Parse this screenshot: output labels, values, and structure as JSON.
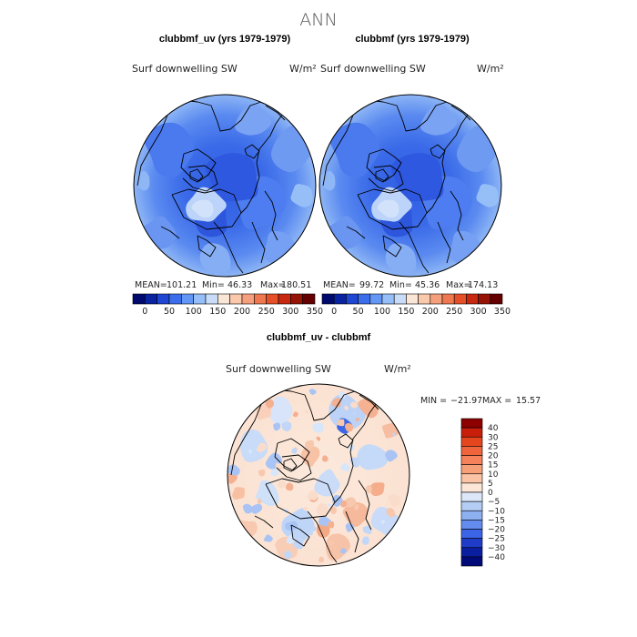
{
  "figure_title": "ANN",
  "chart_data": [
    {
      "type": "heatmap",
      "title": "clubbmf_uv (yrs 1979-1979)",
      "variable": "Surf downwelling SW",
      "units": "W/m²",
      "projection": "north polar stereographic",
      "stats": {
        "mean_label": "MEAN=",
        "mean": "101.21",
        "min_label": "Min=",
        "min": "46.33",
        "max_label": "Max=",
        "max": "180.51"
      },
      "colorbar": {
        "orientation": "horizontal",
        "ticks": [
          "0",
          "50",
          "100",
          "150",
          "200",
          "250",
          "300",
          "350"
        ],
        "colors": [
          "#000a6e",
          "#0a23a0",
          "#1e46d2",
          "#3c6eeb",
          "#6496f5",
          "#96bef8",
          "#c8dcfa",
          "#fae6d7",
          "#fac8aa",
          "#f5a07d",
          "#f07850",
          "#e65028",
          "#c8280f",
          "#961405",
          "#640000"
        ]
      }
    },
    {
      "type": "heatmap",
      "title": "clubbmf (yrs 1979-1979)",
      "variable": "Surf downwelling SW",
      "units": "W/m²",
      "projection": "north polar stereographic",
      "stats": {
        "mean_label": "MEAN=",
        "mean": "99.72",
        "min_label": "Min=",
        "min": "45.36",
        "max_label": "Max=",
        "max": "174.13"
      },
      "colorbar": {
        "orientation": "horizontal",
        "ticks": [
          "0",
          "50",
          "100",
          "150",
          "200",
          "250",
          "300",
          "350"
        ],
        "colors": [
          "#000a6e",
          "#0a23a0",
          "#1e46d2",
          "#3c6eeb",
          "#6496f5",
          "#96bef8",
          "#c8dcfa",
          "#fae6d7",
          "#fac8aa",
          "#f5a07d",
          "#f07850",
          "#e65028",
          "#c8280f",
          "#961405",
          "#640000"
        ]
      }
    },
    {
      "type": "heatmap",
      "title": "clubbmf_uv - clubbmf",
      "variable": "Surf downwelling SW",
      "units": "W/m²",
      "projection": "north polar stereographic",
      "stats": {
        "min_label": "MIN =",
        "min": "−21.97",
        "max_label": "MAX =",
        "max": "15.57"
      },
      "colorbar": {
        "orientation": "vertical",
        "ticks": [
          "40",
          "30",
          "25",
          "20",
          "15",
          "10",
          "5",
          "0",
          "−5",
          "−10",
          "−15",
          "−20",
          "−25",
          "−30",
          "−40"
        ],
        "colors": [
          "#8c0000",
          "#c81e0a",
          "#e6461e",
          "#f0643c",
          "#f5825a",
          "#f7a078",
          "#fac3a5",
          "#fbe6d7",
          "#dce8fa",
          "#b4cdf5",
          "#8cb0f0",
          "#648cee",
          "#3c64e6",
          "#1e3cc8",
          "#0a1ea0",
          "#000a78"
        ]
      }
    }
  ]
}
